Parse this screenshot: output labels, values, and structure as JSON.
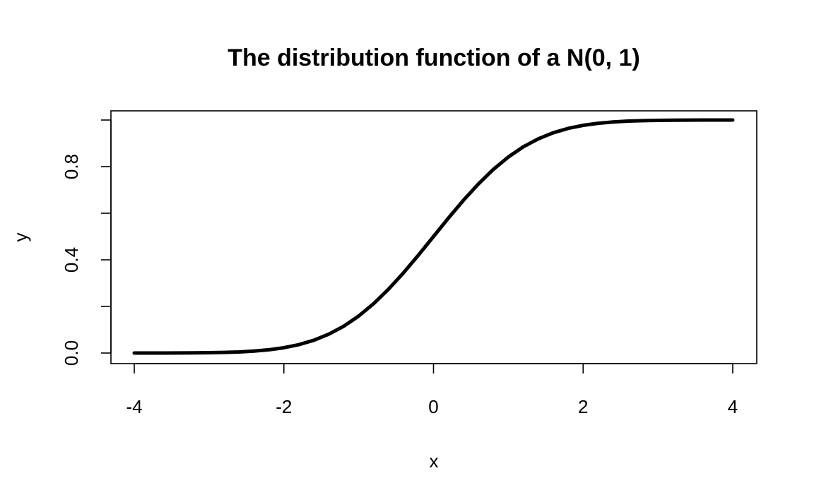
{
  "chart_data": {
    "type": "line",
    "title": "The distribution function of a N(0, 1)",
    "xlabel": "x",
    "ylabel": "y",
    "xlim": [
      -4,
      4
    ],
    "ylim": [
      0,
      1
    ],
    "x_ticks": [
      -4,
      -2,
      0,
      2,
      4
    ],
    "x_tick_labels": [
      "-4",
      "-2",
      "0",
      "2",
      "4"
    ],
    "y_ticks": [
      0,
      0.2,
      0.4,
      0.6,
      0.8,
      1.0
    ],
    "y_tick_labels": [
      "0.0",
      "",
      "0.4",
      "",
      "0.8",
      ""
    ],
    "grid": false,
    "series": [
      {
        "color": "#000000",
        "x": [
          -4,
          -3.8,
          -3.6,
          -3.4,
          -3.2,
          -3,
          -2.8,
          -2.6,
          -2.4,
          -2.2,
          -2,
          -1.8,
          -1.6,
          -1.4,
          -1.2,
          -1,
          -0.8,
          -0.6,
          -0.4,
          -0.2,
          0,
          0.2,
          0.4,
          0.6,
          0.8,
          1,
          1.2,
          1.4,
          1.6,
          1.8,
          2,
          2.2,
          2.4,
          2.6,
          2.8,
          3,
          3.2,
          3.4,
          3.6,
          3.8,
          4
        ],
        "y": [
          3e-05,
          7e-05,
          0.00016,
          0.00034,
          0.00069,
          0.00135,
          0.00256,
          0.00466,
          0.0082,
          0.0139,
          0.0228,
          0.0359,
          0.0548,
          0.0808,
          0.1151,
          0.1587,
          0.2119,
          0.2743,
          0.3446,
          0.4207,
          0.5,
          0.5793,
          0.6554,
          0.7257,
          0.7881,
          0.8413,
          0.8849,
          0.9192,
          0.9452,
          0.9641,
          0.9772,
          0.9861,
          0.9918,
          0.99534,
          0.99744,
          0.99865,
          0.99931,
          0.99966,
          0.99984,
          0.99993,
          0.99997
        ]
      }
    ]
  }
}
